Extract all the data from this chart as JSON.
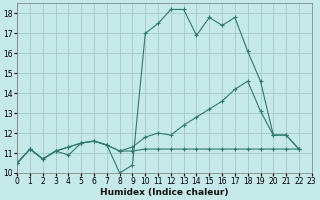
{
  "xlabel": "Humidex (Indice chaleur)",
  "background_color": "#c5e8e8",
  "grid_color": "#aacccc",
  "line_color": "#2d7a6e",
  "series": [
    {
      "x": [
        0,
        1,
        2,
        3,
        4,
        5,
        6,
        7,
        8,
        9,
        10,
        11,
        12,
        13,
        14,
        15,
        16,
        17,
        18,
        19,
        20,
        21,
        22
      ],
      "y": [
        10.5,
        11.2,
        10.7,
        11.1,
        10.9,
        11.5,
        11.6,
        11.4,
        10.0,
        10.4,
        17.0,
        17.5,
        18.2,
        18.2,
        16.9,
        17.8,
        17.4,
        17.8,
        16.1,
        14.6,
        11.9,
        11.9,
        11.2
      ]
    },
    {
      "x": [
        0,
        1,
        2,
        3,
        4,
        5,
        6,
        7,
        8,
        9,
        10,
        11,
        12,
        13,
        14,
        15,
        16,
        17,
        18,
        19,
        20,
        21,
        22
      ],
      "y": [
        10.5,
        11.2,
        10.7,
        11.1,
        11.3,
        11.5,
        11.6,
        11.4,
        11.1,
        11.1,
        11.2,
        11.2,
        11.2,
        11.2,
        11.2,
        11.2,
        11.2,
        11.2,
        11.2,
        11.2,
        11.2,
        11.2,
        11.2
      ]
    },
    {
      "x": [
        0,
        1,
        2,
        3,
        4,
        5,
        6,
        7,
        8,
        9,
        10,
        11,
        12,
        13,
        14,
        15,
        16,
        17,
        18,
        19,
        20,
        21,
        22
      ],
      "y": [
        10.5,
        11.2,
        10.7,
        11.1,
        11.3,
        11.5,
        11.6,
        11.4,
        11.1,
        11.3,
        11.8,
        12.0,
        11.9,
        12.4,
        12.8,
        13.2,
        13.6,
        14.2,
        14.6,
        13.1,
        11.9,
        11.9,
        11.2
      ]
    }
  ],
  "xlim": [
    0,
    23
  ],
  "ylim": [
    10,
    18.5
  ],
  "yticks": [
    10,
    11,
    12,
    13,
    14,
    15,
    16,
    17,
    18
  ],
  "xticks": [
    0,
    1,
    2,
    3,
    4,
    5,
    6,
    7,
    8,
    9,
    10,
    11,
    12,
    13,
    14,
    15,
    16,
    17,
    18,
    19,
    20,
    21,
    22,
    23
  ]
}
